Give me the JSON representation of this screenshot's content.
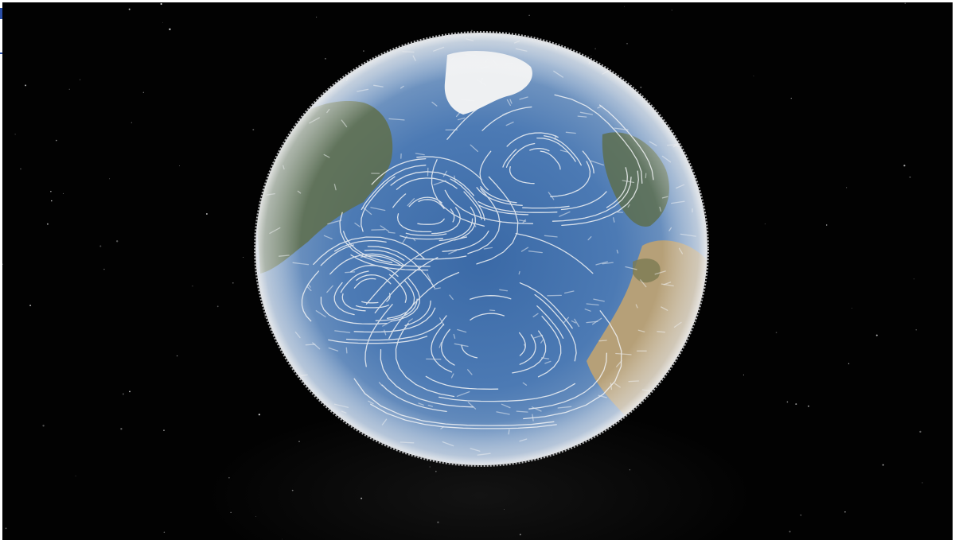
{
  "scene": {
    "subject": "earth-globe-ocean-currents",
    "colors": {
      "space": "#020202",
      "ocean_deep": "#2f5f9a",
      "ocean_light": "#6f94c2",
      "land_green": "#5d6e48",
      "land_desert": "#b9a27a",
      "ice": "#e9ecee",
      "flow_lines": "#f2f4f6"
    }
  }
}
